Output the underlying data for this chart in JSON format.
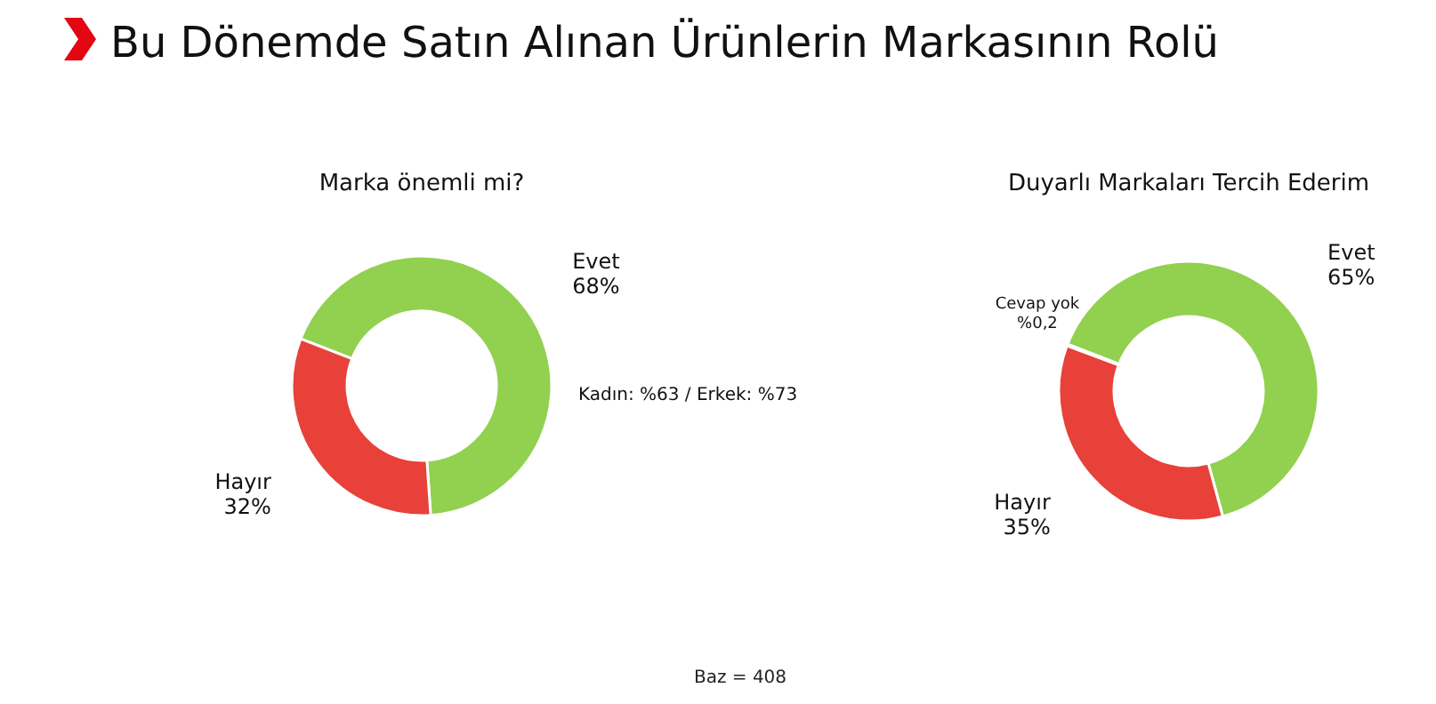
{
  "chart_data": [
    {
      "type": "other",
      "title": "Bu Dönemde Satın Alınan Ürünlerin Markasının Rolü",
      "annotations": [
        "Baz = 408"
      ]
    },
    {
      "type": "donut",
      "title": "Marka önemli mi?",
      "categories": [
        "Evet",
        "Hayır"
      ],
      "values": [
        68,
        32
      ],
      "colors": [
        "#92d050",
        "#e8413a"
      ],
      "value_labels": [
        "68%",
        "32%"
      ],
      "annotations": [
        "Kadın: %63 / Erkek: %73"
      ]
    },
    {
      "type": "donut",
      "title": "Duyarlı Markaları Tercih Ederim",
      "categories": [
        "Evet",
        "Hayır",
        "Cevap yok"
      ],
      "values": [
        65,
        35,
        0.2
      ],
      "colors": [
        "#92d050",
        "#e8413a",
        "#d9d9d9"
      ],
      "value_labels": [
        "65%",
        "35%",
        "%0,2"
      ]
    }
  ]
}
